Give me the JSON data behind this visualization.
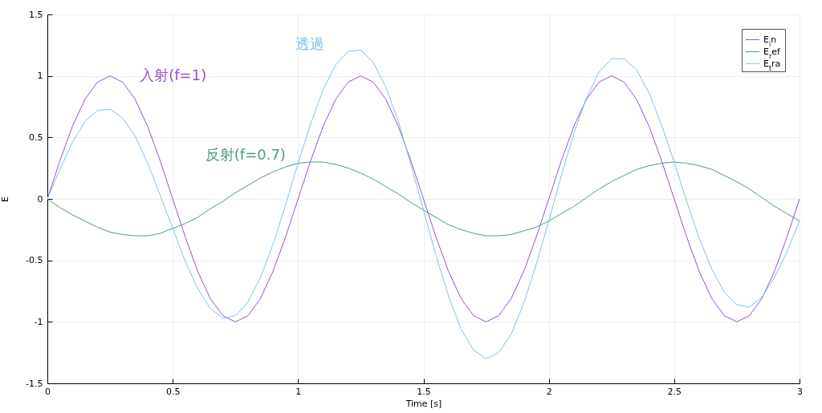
{
  "chart_data": {
    "type": "line",
    "xlabel": "Time [s]",
    "ylabel": "E",
    "x": [
      0,
      0.05,
      0.1,
      0.15,
      0.2,
      0.25,
      0.3,
      0.35,
      0.4,
      0.45,
      0.5,
      0.55,
      0.6,
      0.65,
      0.7,
      0.75,
      0.8,
      0.85,
      0.9,
      0.95,
      1,
      1.05,
      1.1,
      1.15,
      1.2,
      1.25,
      1.3,
      1.35,
      1.4,
      1.45,
      1.5,
      1.55,
      1.6,
      1.65,
      1.7,
      1.75,
      1.8,
      1.85,
      1.9,
      1.95,
      2,
      2.05,
      2.1,
      2.15,
      2.2,
      2.25,
      2.3,
      2.35,
      2.4,
      2.45,
      2.5,
      2.55,
      2.6,
      2.65,
      2.7,
      2.75,
      2.8,
      2.85,
      2.9,
      2.95,
      3
    ],
    "series": [
      {
        "name": "E$_{i}$n",
        "color": "#9b4fd8",
        "values": [
          0,
          0.31,
          0.59,
          0.81,
          0.95,
          1,
          0.95,
          0.81,
          0.59,
          0.31,
          0,
          -0.31,
          -0.59,
          -0.81,
          -0.95,
          -1,
          -0.95,
          -0.81,
          -0.59,
          -0.31,
          0,
          0.31,
          0.59,
          0.81,
          0.95,
          1,
          0.95,
          0.81,
          0.59,
          0.31,
          0,
          -0.31,
          -0.59,
          -0.81,
          -0.95,
          -1,
          -0.95,
          -0.81,
          -0.59,
          -0.31,
          0,
          0.31,
          0.59,
          0.81,
          0.95,
          1,
          0.95,
          0.81,
          0.59,
          0.31,
          0,
          -0.31,
          -0.59,
          -0.81,
          -0.95,
          -1,
          -0.95,
          -0.81,
          -0.59,
          -0.31,
          0
        ]
      },
      {
        "name": "E$_{r}$ef",
        "color": "#4a9e7a",
        "values": [
          0,
          -0.07,
          -0.13,
          -0.18,
          -0.23,
          -0.27,
          -0.29,
          -0.3,
          -0.3,
          -0.28,
          -0.24,
          -0.2,
          -0.15,
          -0.08,
          -0.02,
          0.05,
          0.11,
          0.17,
          0.22,
          0.26,
          0.29,
          0.3,
          0.3,
          0.28,
          0.25,
          0.21,
          0.16,
          0.1,
          0.04,
          -0.03,
          -0.09,
          -0.15,
          -0.21,
          -0.25,
          -0.28,
          -0.3,
          -0.3,
          -0.29,
          -0.26,
          -0.23,
          -0.18,
          -0.12,
          -0.06,
          0.01,
          0.08,
          0.14,
          0.19,
          0.24,
          0.27,
          0.29,
          0.3,
          0.29,
          0.27,
          0.24,
          0.19,
          0.14,
          0.08,
          0.01,
          -0.06,
          -0.12,
          -0.18
        ]
      },
      {
        "name": "E$_{t}$ra",
        "color": "#7cc4ec",
        "values": [
          0,
          0.24,
          0.46,
          0.63,
          0.72,
          0.73,
          0.66,
          0.51,
          0.29,
          0.03,
          -0.24,
          -0.51,
          -0.73,
          -0.89,
          -0.97,
          -0.95,
          -0.84,
          -0.64,
          -0.37,
          -0.05,
          0.29,
          0.61,
          0.89,
          1.09,
          1.2,
          1.21,
          1.11,
          0.91,
          0.63,
          0.28,
          -0.09,
          -0.46,
          -0.79,
          -1.06,
          -1.23,
          -1.3,
          -1.25,
          -1.1,
          -0.85,
          -0.53,
          -0.18,
          0.19,
          0.53,
          0.82,
          1.03,
          1.14,
          1.14,
          1.05,
          0.86,
          0.6,
          0.3,
          -0.02,
          -0.32,
          -0.57,
          -0.76,
          -0.86,
          -0.88,
          -0.8,
          -0.64,
          -0.43,
          -0.18
        ]
      }
    ],
    "annotations": [
      "入射(f=1)",
      "反射(f=0.7)",
      "透過"
    ],
    "xlim": [
      0,
      3
    ],
    "xticks": [
      0,
      0.5,
      1,
      1.5,
      2,
      2.5,
      3
    ],
    "ylim": [
      -1.5,
      1.5
    ],
    "yticks": [
      -1.5,
      -1,
      -0.5,
      0,
      0.5,
      1,
      1.5
    ],
    "grid": true,
    "legend": "top right"
  }
}
